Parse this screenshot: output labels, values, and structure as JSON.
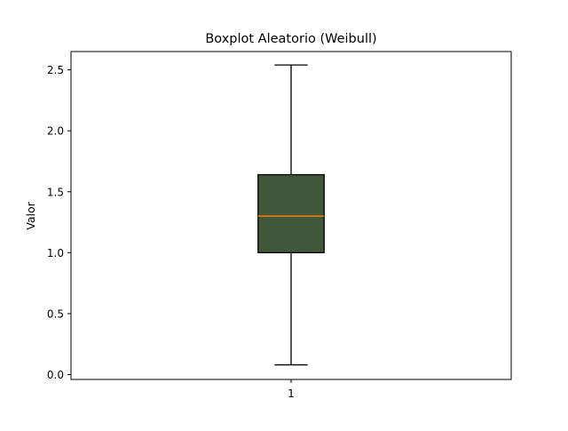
{
  "chart_data": {
    "type": "boxplot",
    "title": "Boxplot Aleatorio (Weibull)",
    "xlabel": "",
    "ylabel": "Valor",
    "categories": [
      "1"
    ],
    "boxes": [
      {
        "category": "1",
        "whisker_low": 0.08,
        "q1": 1.0,
        "median": 1.3,
        "q3": 1.64,
        "whisker_high": 2.54
      }
    ],
    "ylim": [
      -0.04,
      2.65
    ],
    "yticks": [
      0.0,
      0.5,
      1.0,
      1.5,
      2.0,
      2.5
    ],
    "ytick_labels": [
      "0.0",
      "0.5",
      "1.0",
      "1.5",
      "2.0",
      "2.5"
    ],
    "grid": false,
    "colors": {
      "box_fill": "#40573a",
      "median_line": "#ff7f0e",
      "edge": "#000000"
    }
  }
}
